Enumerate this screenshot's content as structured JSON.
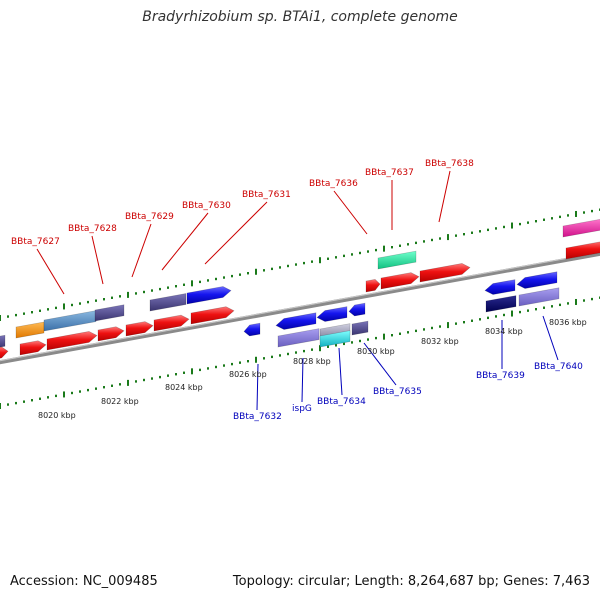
{
  "title": "Bradyrhizobium sp. BTAi1, complete genome",
  "accession": "Accession: NC_009485",
  "summary": "Topology: circular; Length: 8,264,687 bp; Genes: 7,463",
  "colors": {
    "forward_label": "#cc0000",
    "reverse_label": "#0000bb",
    "tick": "#1a7a1a",
    "backbone": "#8a8a8a"
  },
  "scale_labels": [
    "8020 kbp",
    "8022 kbp",
    "8024 kbp",
    "8026 kbp",
    "8028 kbp",
    "8030 kbp",
    "8032 kbp",
    "8034 kbp",
    "8036 kbp"
  ],
  "forward_gene_labels": [
    "BBta_7627",
    "BBta_7628",
    "BBta_7629",
    "BBta_7630",
    "BBta_7631",
    "BBta_7636",
    "BBta_7637",
    "BBta_7638"
  ],
  "reverse_gene_labels": [
    "BBta_7632",
    "ispG",
    "BBta_7634",
    "BBta_7635",
    "BBta_7639",
    "BBta_7640"
  ]
}
